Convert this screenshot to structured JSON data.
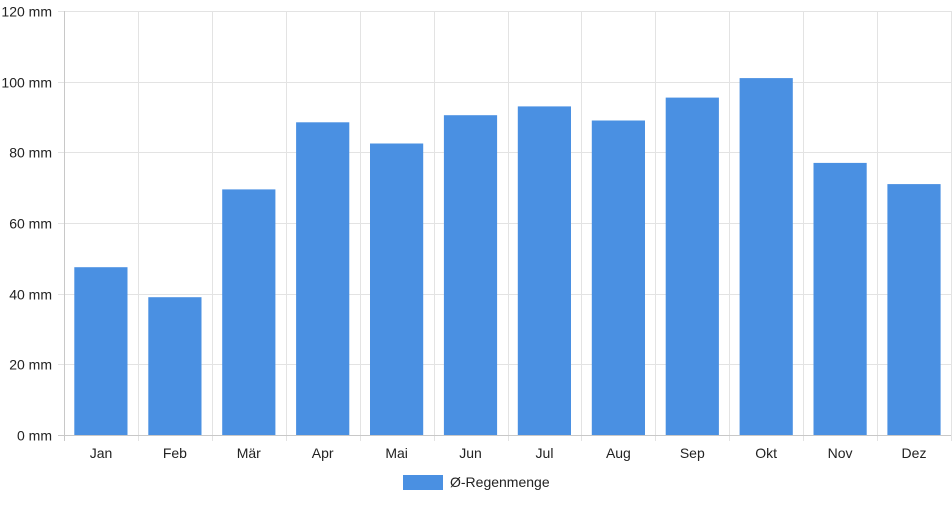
{
  "chart_data": {
    "type": "bar",
    "categories": [
      "Jan",
      "Feb",
      "Mär",
      "Apr",
      "Mai",
      "Jun",
      "Jul",
      "Aug",
      "Sep",
      "Okt",
      "Nov",
      "Dez"
    ],
    "series": [
      {
        "name": "Ø-Regenmenge",
        "values": [
          47.5,
          39,
          69.5,
          88.5,
          82.5,
          90.5,
          93,
          89,
          95.5,
          101,
          77,
          71
        ],
        "color": "#4a90e2"
      }
    ],
    "ylim": [
      0,
      120
    ],
    "y_ticks": [
      0,
      20,
      40,
      60,
      80,
      100,
      120
    ],
    "y_unit": "mm",
    "grid": true,
    "legend_position": "bottom-center"
  }
}
